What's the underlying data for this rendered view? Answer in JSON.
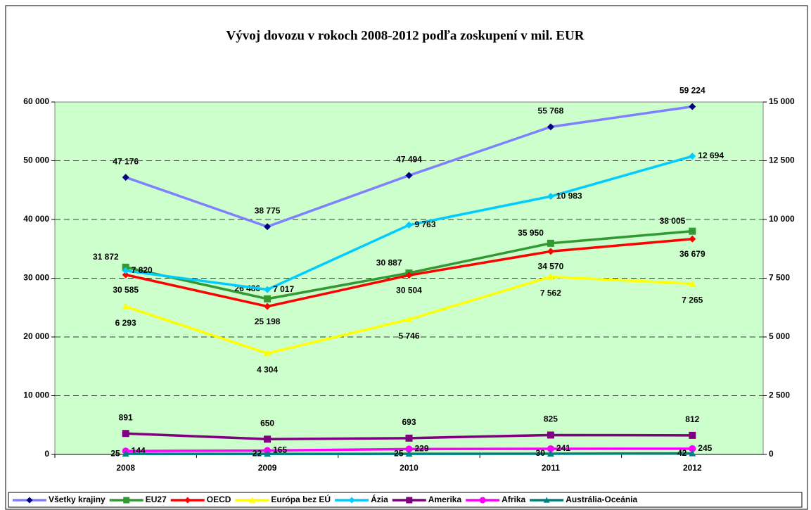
{
  "chart_data": {
    "type": "line",
    "title": "Vývoj dovozu v rokoch 2008-2012 podľa zoskupení v mil. EUR",
    "categories": [
      "2008",
      "2009",
      "2010",
      "2011",
      "2012"
    ],
    "ylim": [
      0,
      60000
    ],
    "yticks": [
      {
        "value": 0,
        "label": "0"
      },
      {
        "value": 10000,
        "label": "10 000"
      },
      {
        "value": 20000,
        "label": "20 000"
      },
      {
        "value": 30000,
        "label": "30 000"
      },
      {
        "value": 40000,
        "label": "40 000"
      },
      {
        "value": 50000,
        "label": "50 000"
      },
      {
        "value": 60000,
        "label": "60 000"
      }
    ],
    "y2lim": [
      0,
      15000
    ],
    "y2ticks": [
      {
        "value": 0,
        "label": "0"
      },
      {
        "value": 2500,
        "label": "2 500"
      },
      {
        "value": 5000,
        "label": "5 000"
      },
      {
        "value": 7500,
        "label": "7 500"
      },
      {
        "value": 10000,
        "label": "10 000"
      },
      {
        "value": 12500,
        "label": "12 500"
      },
      {
        "value": 15000,
        "label": "15 000"
      }
    ],
    "grid": true,
    "legend": "bottom",
    "series": [
      {
        "name": "Všetky krajiny",
        "color": "#8080ff",
        "marker_color": "#000080",
        "marker": "diamond",
        "axis": "y",
        "values": [
          47176,
          38775,
          47494,
          55768,
          59224
        ],
        "value_labels": [
          "47 176",
          "38 775",
          "47 494",
          "55 768",
          "59 224"
        ]
      },
      {
        "name": "EU27",
        "color": "#339933",
        "marker": "square",
        "axis": "y",
        "values": [
          31872,
          26486,
          30887,
          35950,
          38005
        ],
        "value_labels": [
          "31 872",
          "26 486",
          "30 887",
          "35 950",
          "38 005"
        ]
      },
      {
        "name": "OECD",
        "color": "#ff0000",
        "marker": "diamond",
        "axis": "y",
        "values": [
          30585,
          25198,
          30504,
          34570,
          36679
        ],
        "value_labels": [
          "30 585",
          "25 198",
          "30 504",
          "34 570",
          "36 679"
        ]
      },
      {
        "name": "Európa bez EÚ",
        "color": "#ffff00",
        "marker": "triangle",
        "axis": "y2",
        "values": [
          6293,
          4304,
          5746,
          7562,
          7265
        ],
        "value_labels": [
          "6 293",
          "4 304",
          "5 746",
          "7 562",
          "7 265"
        ]
      },
      {
        "name": "Ázia",
        "color": "#00ccff",
        "marker": "diamond",
        "axis": "y2",
        "values": [
          7820,
          7017,
          9763,
          10983,
          12694
        ],
        "value_labels": [
          "7 820",
          "7 017",
          "9 763",
          "10 983",
          "12 694"
        ]
      },
      {
        "name": "Amerika",
        "color": "#800080",
        "marker": "square",
        "axis": "y2",
        "values": [
          891,
          650,
          693,
          825,
          812
        ]
      },
      {
        "name": "Afrika",
        "color": "#ff00ff",
        "marker": "circle",
        "axis": "y2",
        "values": [
          144,
          165,
          229,
          241,
          245
        ]
      },
      {
        "name": "Austrália-Oceánia",
        "color": "#008080",
        "marker": "triangle",
        "axis": "y2",
        "values": [
          25,
          22,
          25,
          30,
          42
        ]
      }
    ]
  }
}
